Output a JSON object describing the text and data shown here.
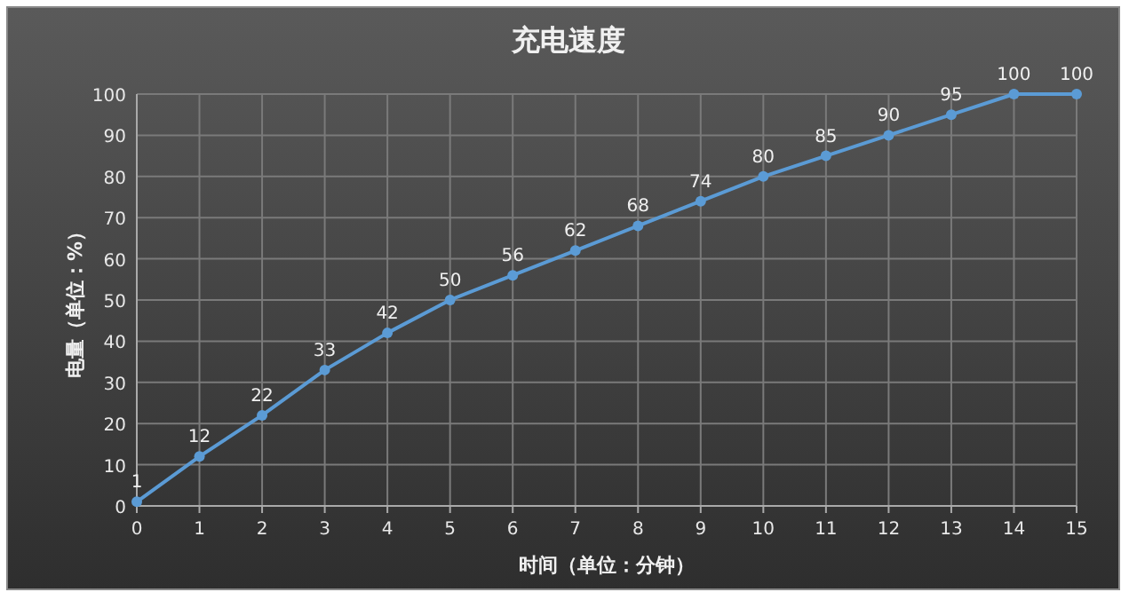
{
  "chart_data": {
    "type": "line",
    "title": "充电速度",
    "xlabel": "时间（单位：分钟）",
    "ylabel": "电量（单位：%）",
    "x": [
      0,
      1,
      2,
      3,
      4,
      5,
      6,
      7,
      8,
      9,
      10,
      11,
      12,
      13,
      14,
      15
    ],
    "series": [
      {
        "color": "#5b9bd5",
        "values": [
          1,
          12,
          22,
          33,
          42,
          50,
          56,
          62,
          68,
          74,
          80,
          85,
          90,
          95,
          100,
          100
        ]
      }
    ],
    "xlim": [
      0,
      15
    ],
    "xticks": [
      0,
      1,
      2,
      3,
      4,
      5,
      6,
      7,
      8,
      9,
      10,
      11,
      12,
      13,
      14,
      15
    ],
    "ylim": [
      0,
      100
    ],
    "yticks": [
      0,
      10,
      20,
      30,
      40,
      50,
      60,
      70,
      80,
      90,
      100
    ],
    "grid": true,
    "marker": "circle",
    "data_labels": true
  }
}
